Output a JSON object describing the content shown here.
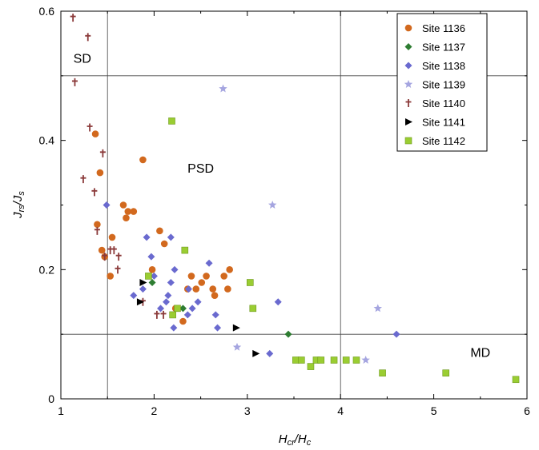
{
  "chart_data": {
    "type": "scatter",
    "xlabel": {
      "main": "H",
      "sub1": "cr",
      "mid": "/H",
      "sub2": "c"
    },
    "ylabel": {
      "main": "J",
      "sub1": "rs",
      "mid": "/J",
      "sub2": "s"
    },
    "xlim": [
      1,
      6
    ],
    "ylim": [
      0,
      0.6
    ],
    "xticks": [
      "1",
      "2",
      "3",
      "4",
      "5",
      "6"
    ],
    "xtick_values": [
      1,
      2,
      3,
      4,
      5,
      6
    ],
    "yticks": [
      "0",
      "0.2",
      "0.4",
      "0.6"
    ],
    "ytick_values": [
      0,
      0.2,
      0.4,
      0.6
    ],
    "grid": false,
    "reference_lines": {
      "x": [
        1.5,
        4
      ],
      "y": [
        0.1,
        0.5
      ]
    },
    "region_labels": [
      {
        "text": "SD",
        "x": 1.23,
        "y": 0.52
      },
      {
        "text": "PSD",
        "x": 2.5,
        "y": 0.35
      },
      {
        "text": "MD",
        "x": 5.5,
        "y": 0.065
      }
    ],
    "legend_position": "top-right",
    "series": [
      {
        "name": "Site 1136",
        "marker": "circle",
        "color": "#D2691E",
        "points": [
          [
            1.37,
            0.41
          ],
          [
            1.39,
            0.27
          ],
          [
            1.42,
            0.35
          ],
          [
            1.44,
            0.23
          ],
          [
            1.47,
            0.22
          ],
          [
            1.53,
            0.19
          ],
          [
            1.55,
            0.25
          ],
          [
            1.67,
            0.3
          ],
          [
            1.7,
            0.28
          ],
          [
            1.72,
            0.29
          ],
          [
            1.78,
            0.29
          ],
          [
            1.88,
            0.37
          ],
          [
            1.98,
            0.2
          ],
          [
            2.06,
            0.26
          ],
          [
            2.11,
            0.24
          ],
          [
            2.23,
            0.14
          ],
          [
            2.31,
            0.12
          ],
          [
            2.36,
            0.17
          ],
          [
            2.4,
            0.19
          ],
          [
            2.45,
            0.17
          ],
          [
            2.51,
            0.18
          ],
          [
            2.56,
            0.19
          ],
          [
            2.63,
            0.17
          ],
          [
            2.65,
            0.16
          ],
          [
            2.75,
            0.19
          ],
          [
            2.79,
            0.17
          ],
          [
            2.81,
            0.2
          ]
        ]
      },
      {
        "name": "Site 1137",
        "marker": "diamond",
        "color": "#2E7D32",
        "points": [
          [
            1.98,
            0.18
          ],
          [
            2.31,
            0.14
          ],
          [
            3.44,
            0.1
          ]
        ]
      },
      {
        "name": "Site 1138",
        "marker": "diamond",
        "color": "#6A6ACF",
        "points": [
          [
            1.49,
            0.3
          ],
          [
            1.78,
            0.16
          ],
          [
            1.88,
            0.17
          ],
          [
            1.92,
            0.25
          ],
          [
            1.97,
            0.22
          ],
          [
            2.0,
            0.19
          ],
          [
            2.07,
            0.14
          ],
          [
            2.13,
            0.15
          ],
          [
            2.15,
            0.16
          ],
          [
            2.18,
            0.25
          ],
          [
            2.18,
            0.18
          ],
          [
            2.21,
            0.11
          ],
          [
            2.22,
            0.2
          ],
          [
            2.36,
            0.13
          ],
          [
            2.37,
            0.17
          ],
          [
            2.41,
            0.14
          ],
          [
            2.47,
            0.15
          ],
          [
            2.59,
            0.21
          ],
          [
            2.66,
            0.13
          ],
          [
            2.68,
            0.11
          ],
          [
            3.24,
            0.07
          ],
          [
            3.33,
            0.15
          ],
          [
            4.6,
            0.1
          ]
        ]
      },
      {
        "name": "Site 1139",
        "marker": "star",
        "color": "#A5A5E0",
        "points": [
          [
            2.74,
            0.48
          ],
          [
            2.89,
            0.08
          ],
          [
            3.27,
            0.3
          ],
          [
            4.27,
            0.06
          ],
          [
            4.4,
            0.14
          ]
        ]
      },
      {
        "name": "Site 1140",
        "marker": "cross",
        "color": "#8B3A3A",
        "points": [
          [
            1.13,
            0.59
          ],
          [
            1.15,
            0.49
          ],
          [
            1.24,
            0.34
          ],
          [
            1.29,
            0.56
          ],
          [
            1.31,
            0.42
          ],
          [
            1.36,
            0.32
          ],
          [
            1.39,
            0.26
          ],
          [
            1.45,
            0.38
          ],
          [
            1.47,
            0.22
          ],
          [
            1.53,
            0.23
          ],
          [
            1.57,
            0.23
          ],
          [
            1.62,
            0.22
          ],
          [
            1.61,
            0.2
          ],
          [
            1.88,
            0.15
          ],
          [
            2.03,
            0.13
          ],
          [
            2.1,
            0.13
          ]
        ]
      },
      {
        "name": "Site 1141",
        "marker": "triangle",
        "color": "#000000",
        "points": [
          [
            1.88,
            0.18
          ],
          [
            1.85,
            0.15
          ],
          [
            2.88,
            0.11
          ],
          [
            3.09,
            0.07
          ]
        ]
      },
      {
        "name": "Site 1142",
        "marker": "square",
        "color": "#9ACD32",
        "points": [
          [
            1.94,
            0.19
          ],
          [
            2.19,
            0.43
          ],
          [
            2.2,
            0.13
          ],
          [
            2.25,
            0.14
          ],
          [
            2.33,
            0.23
          ],
          [
            3.03,
            0.18
          ],
          [
            3.06,
            0.14
          ],
          [
            3.52,
            0.06
          ],
          [
            3.58,
            0.06
          ],
          [
            3.68,
            0.05
          ],
          [
            3.74,
            0.06
          ],
          [
            3.79,
            0.06
          ],
          [
            3.93,
            0.06
          ],
          [
            4.06,
            0.06
          ],
          [
            4.17,
            0.06
          ],
          [
            4.45,
            0.04
          ],
          [
            5.13,
            0.04
          ],
          [
            5.88,
            0.03
          ]
        ]
      }
    ]
  }
}
